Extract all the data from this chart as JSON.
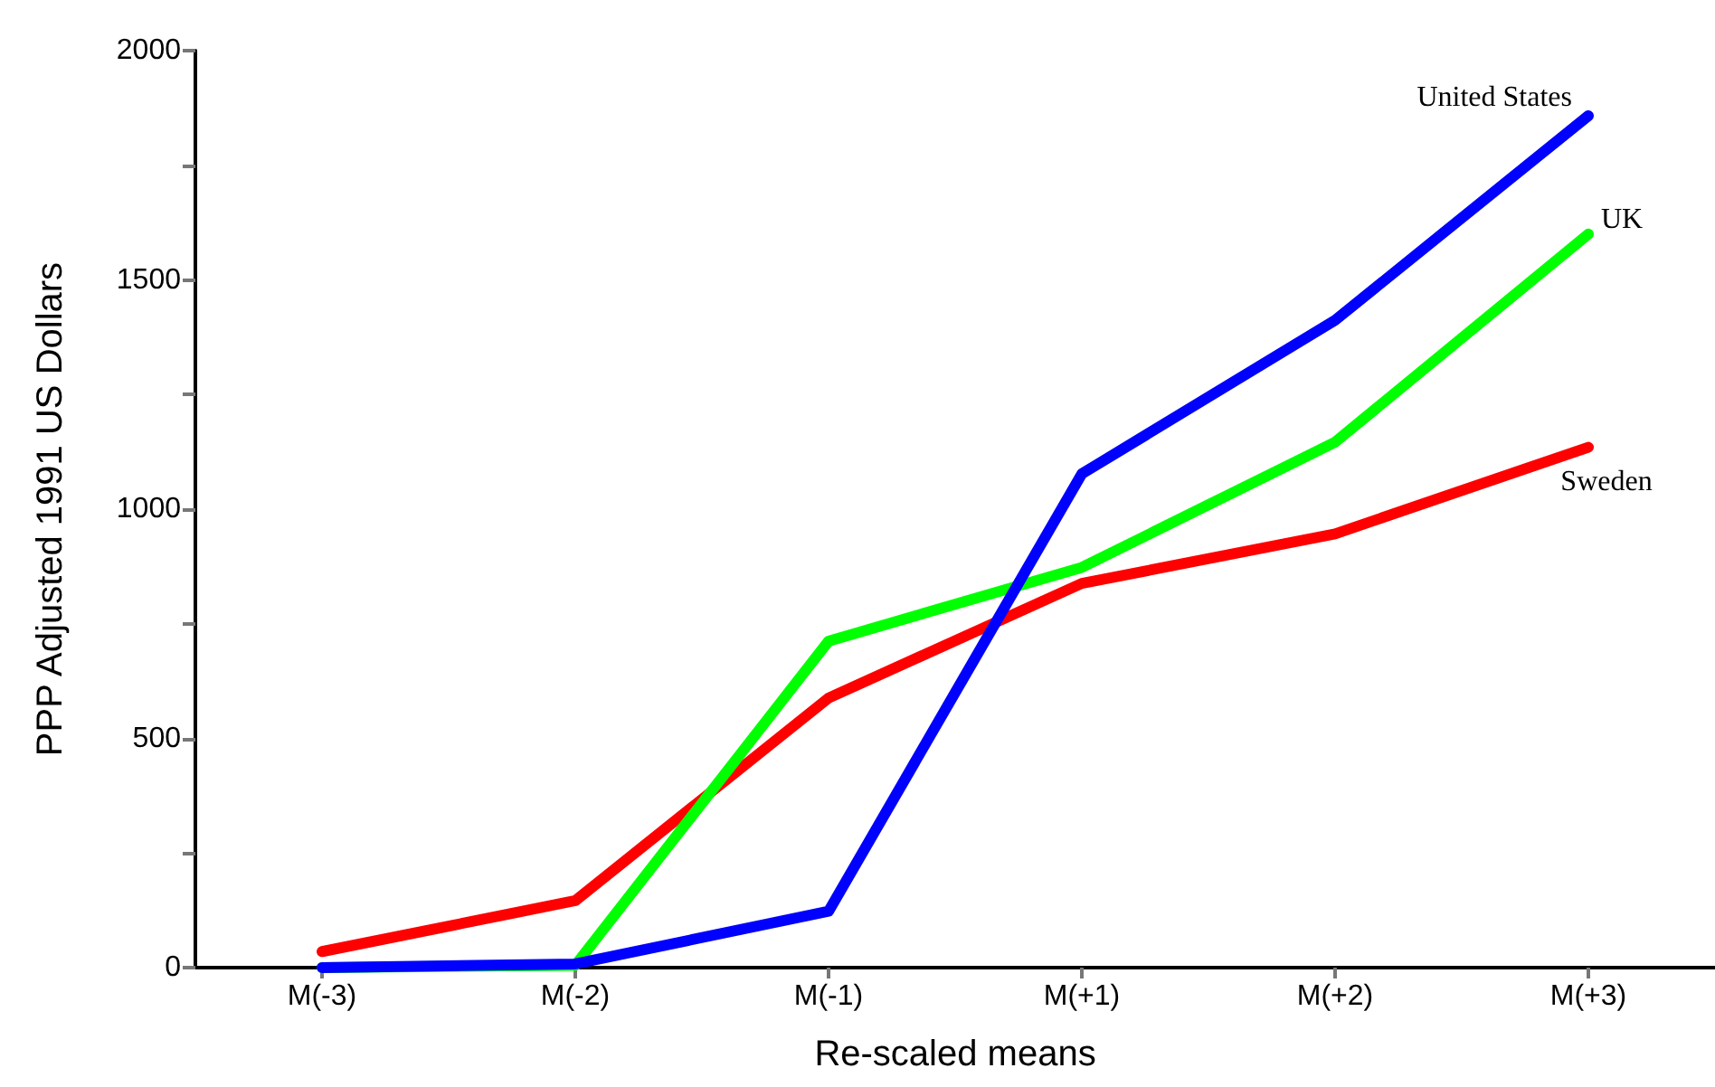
{
  "chart_data": {
    "type": "line",
    "xlabel": "Re-scaled means",
    "ylabel": "PPP Adjusted 1991 US Dollars",
    "categories": [
      "M(-3)",
      "M(-2)",
      "M(-1)",
      "M(+1)",
      "M(+2)",
      "M(+3)"
    ],
    "ylim": [
      0,
      2000
    ],
    "yticks": [
      0,
      {
        "value": 250,
        "label": null
      },
      500,
      {
        "value": 750,
        "label": null
      },
      1000,
      {
        "value": 1250,
        "label": null
      },
      1500,
      {
        "value": 1750,
        "label": null
      },
      2000
    ],
    "series": [
      {
        "name": "Sweden",
        "color": "#ff0000",
        "values": [
          35,
          146,
          588,
          838,
          946,
          1135
        ]
      },
      {
        "name": "UK",
        "color": "#00ff00",
        "values": [
          0,
          5,
          712,
          873,
          1146,
          1600
        ]
      },
      {
        "name": "United States",
        "color": "#0000ff",
        "values": [
          0,
          8,
          123,
          1077,
          1412,
          1858
        ]
      }
    ],
    "grid": false,
    "legend": false,
    "line_style": "solid"
  }
}
